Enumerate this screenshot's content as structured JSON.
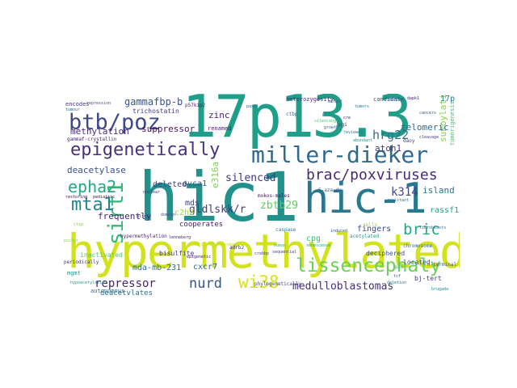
{
  "words": {
    "w01": {
      "text": "hic1",
      "color": "#21918c"
    },
    "w02": {
      "text": "hypermethylated",
      "color": "#d2e21b"
    },
    "w03": {
      "text": "17p13.3",
      "color": "#1f9e89"
    },
    "w04": {
      "text": "hic-1",
      "color": "#2a788e"
    },
    "w05": {
      "text": "miller-dieker",
      "color": "#31688e"
    },
    "w06": {
      "text": "epigenetically",
      "color": "#46327e"
    },
    "w07": {
      "text": "btb/poz",
      "color": "#3e4989"
    },
    "w08": {
      "text": "brac/poxviruses",
      "color": "#482878"
    },
    "w09": {
      "text": "lissencephaly",
      "color": "#6ece58"
    },
    "w10": {
      "text": "sirt1",
      "color": "#35b779"
    },
    "w11": {
      "text": "mta1",
      "color": "#26828e"
    },
    "w12": {
      "text": "epha2",
      "color": "#22a884"
    },
    "w13": {
      "text": "wi38",
      "color": "#d5e21a"
    },
    "w14": {
      "text": "nurd",
      "color": "#39568c"
    },
    "w15": {
      "text": "bric",
      "color": "#22a884"
    },
    "w16": {
      "text": "repressor",
      "color": "#482475"
    },
    "w17": {
      "text": "medulloblastomas",
      "color": "#472d7b"
    },
    "w18": {
      "text": "gldlskk/r",
      "color": "#443983"
    },
    "w19": {
      "text": "zbtb29",
      "color": "#5ec962"
    },
    "w20": {
      "text": "hrg22",
      "color": "#2c728e"
    },
    "w21": {
      "text": "silenced",
      "color": "#453781"
    },
    "w22": {
      "text": "k314",
      "color": "#404688"
    },
    "w23": {
      "text": "e316a",
      "color": "#7ad151"
    },
    "w24": {
      "text": "gammafbp-b",
      "color": "#3b528b"
    },
    "w25": {
      "text": "suppressor",
      "color": "#471164"
    },
    "w26": {
      "text": "methylation",
      "color": "#472a7a"
    },
    "w27": {
      "text": "zinc",
      "color": "#481f70"
    },
    "w28": {
      "text": "sumoylation",
      "color": "#84d44b"
    },
    "w29": {
      "text": "atoh1",
      "color": "#443a83"
    },
    "w30": {
      "text": "telomeric",
      "color": "#31688e"
    },
    "w31": {
      "text": "island",
      "color": "#2a788e"
    },
    "w32": {
      "text": "deacetylase",
      "color": "#3b528b"
    },
    "w33": {
      "text": "frequently",
      "color": "#482677"
    },
    "w34": {
      "text": "c2h2",
      "color": "#a0da39"
    },
    "w35": {
      "text": "mds",
      "color": "#3f4788"
    },
    "w36": {
      "text": "cxcr7",
      "color": "#31688e"
    },
    "w37": {
      "text": "mda-mb-231",
      "color": "#2d708e"
    },
    "w38": {
      "text": "17p",
      "color": "#287d8e"
    },
    "w39": {
      "text": "rassf1a",
      "color": "#20a386"
    },
    "w40": {
      "text": "fingers",
      "color": "#3e4a89"
    },
    "w41": {
      "text": "ovca1",
      "color": "#375a8c"
    },
    "w42": {
      "text": "deleted",
      "color": "#424086"
    },
    "w43": {
      "text": "bj-tert",
      "color": "#453882"
    },
    "w44": {
      "text": "deacetylates",
      "color": "#2c728e"
    },
    "w45": {
      "text": "cpg",
      "color": "#3dbc74"
    },
    "w46": {
      "text": "inactivated",
      "color": "#56c667"
    },
    "w47": {
      "text": "bisulfite",
      "color": "#443b84"
    },
    "w48": {
      "text": "cooperates",
      "color": "#482173"
    },
    "w49": {
      "text": "located",
      "color": "#3a548c"
    },
    "w50": {
      "text": "deciphered",
      "color": "#3b518b"
    },
    "w51": {
      "text": "trichostatin",
      "color": "#453581"
    },
    "w52": {
      "text": "heterozygosity",
      "color": "#482878"
    },
    "w53": {
      "text": "candidate",
      "color": "#3e4a89"
    },
    "w54": {
      "text": "encodes",
      "color": "#453781"
    },
    "w55": {
      "text": "autonomous",
      "color": "#2e6e8e"
    },
    "w56": {
      "text": "mgmt",
      "color": "#1f968b"
    },
    "w57": {
      "text": "phylogenetically",
      "color": "#3f4889"
    },
    "w58": {
      "text": "hypermethylation",
      "color": "#482475"
    },
    "w59": {
      "text": "mokos-males",
      "color": "#471365"
    },
    "w60": {
      "text": "tumorigenesis",
      "color": "#4ac16d"
    },
    "w61": {
      "text": "5-aza-dc",
      "color": "#38588c"
    },
    "w62": {
      "text": "adrb2",
      "color": "#46317e"
    },
    "w63": {
      "text": "p16",
      "color": "#2db27d"
    },
    "w64": {
      "text": "cells",
      "color": "#95d840"
    },
    "w65": {
      "text": "chromosome",
      "color": "#31688e"
    },
    "w66": {
      "text": "repression",
      "color": "#3c4f8a"
    },
    "w67": {
      "text": "gammaf-crystallin",
      "color": "#482979"
    },
    "w68": {
      "text": "p57kip2",
      "color": "#48186a"
    },
    "w69": {
      "text": "periodically",
      "color": "#443983"
    },
    "w70": {
      "text": "caspase",
      "color": "#2a788e"
    },
    "w71": {
      "text": "sequential",
      "color": "#433e85"
    },
    "w72": {
      "text": "acetylated",
      "color": "#1f9a8a"
    },
    "w73": {
      "text": "n-terminal",
      "color": "#3b518b"
    },
    "w74": {
      "text": "dapk1",
      "color": "#481b6d"
    },
    "w75": {
      "text": "cancers",
      "color": "#3b528b"
    },
    "w76": {
      "text": "ctbp",
      "color": "#2e6f8e"
    },
    "w77": {
      "text": "renamed",
      "color": "#482071"
    },
    "w78": {
      "text": "tumors",
      "color": "#2b748e"
    },
    "w79": {
      "text": "mutant",
      "color": "#34618d"
    },
    "w80": {
      "text": "silencing",
      "color": "#4ac16d"
    },
    "w81": {
      "text": "growth",
      "color": "#38588c"
    },
    "w82": {
      "text": "daoy",
      "color": "#3f4889"
    },
    "w83": {
      "text": "cgi",
      "color": "#481f70"
    },
    "w84": {
      "text": "reviewed",
      "color": "#2a778e"
    },
    "w85": {
      "text": "pediatric",
      "color": "#46075a"
    },
    "w86": {
      "text": "ctip",
      "color": "#7fd34e"
    },
    "w87": {
      "text": "sirt1-dependent",
      "color": "#c2df23"
    },
    "w88": {
      "text": "fibroblasts",
      "color": "#31688e"
    },
    "w89": {
      "text": "glioma",
      "color": "#3c4f8a"
    },
    "w90": {
      "text": "brugada",
      "color": "#24868e"
    },
    "w91": {
      "text": "crebbp",
      "color": "#3e4989"
    },
    "w92": {
      "text": "cre",
      "color": "#481769"
    },
    "w93": {
      "text": "pax6",
      "color": "#2e6e8e"
    },
    "w94": {
      "text": "tcf",
      "color": "#3d4e8a"
    },
    "w95": {
      "text": "senescence",
      "color": "#20a386"
    },
    "w96": {
      "text": "deletion",
      "color": "#2d708e"
    },
    "w97": {
      "text": "p53",
      "color": "#287c8e"
    },
    "w98": {
      "text": "domain",
      "color": "#3f4889"
    },
    "w99": {
      "text": "restoring",
      "color": "#440154"
    },
    "w100": {
      "text": "tumour",
      "color": "#2c718e"
    },
    "w101": {
      "text": "cer1",
      "color": "#2a788e"
    },
    "w102": {
      "text": "lenneberg",
      "color": "#482475"
    },
    "w103": {
      "text": "hypoacetylation",
      "color": "#1fa088"
    },
    "w104": {
      "text": "epigenetic",
      "color": "#481467"
    },
    "w105": {
      "text": "human",
      "color": "#35b779"
    },
    "w106": {
      "text": "induced",
      "color": "#3b528b"
    },
    "w107": {
      "text": "resistant",
      "color": "#2c728e"
    },
    "w108": {
      "text": "cleavage",
      "color": "#424186"
    },
    "w109": {
      "text": "abundant",
      "color": "#21918c"
    },
    "w110": {
      "text": "nuclear",
      "color": "#472c7a"
    },
    "w111": {
      "text": "pocket",
      "color": "#8bd646"
    }
  }
}
